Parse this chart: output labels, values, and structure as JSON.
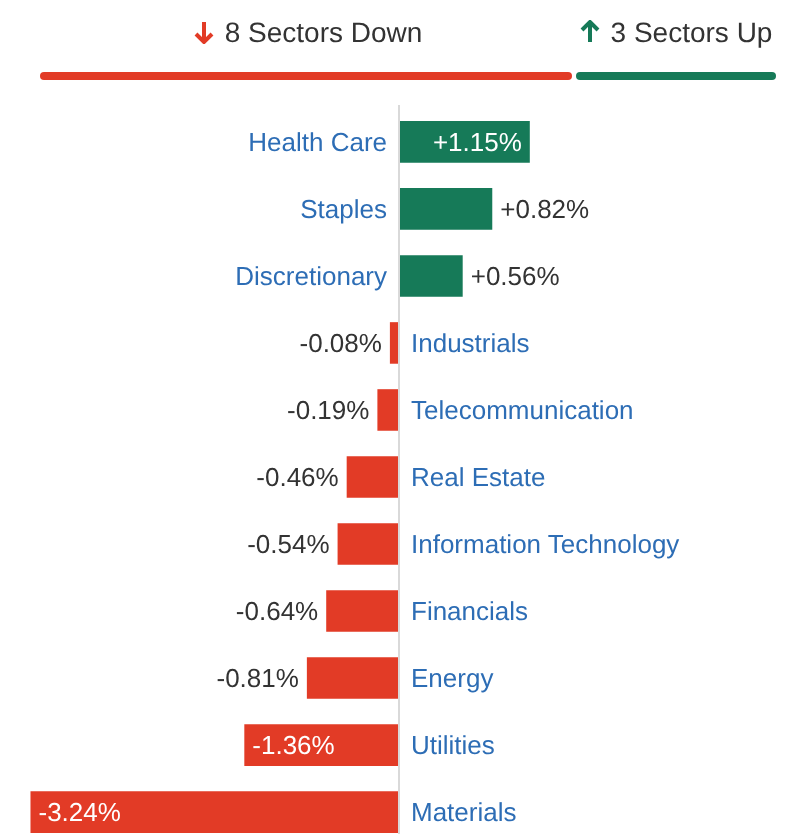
{
  "chart_data": {
    "type": "bar",
    "orientation": "horizontal",
    "annotations": [
      "8 Sectors Down",
      "3 Sectors Up"
    ],
    "categories": [
      "Health Care",
      "Staples",
      "Discretionary",
      "Industrials",
      "Telecommunication",
      "Real Estate",
      "Information Technology",
      "Financials",
      "Energy",
      "Utilities",
      "Materials"
    ],
    "values": [
      1.15,
      0.82,
      0.56,
      -0.08,
      -0.19,
      -0.46,
      -0.54,
      -0.64,
      -0.81,
      -1.36,
      -3.24
    ],
    "value_labels": [
      "+1.15%",
      "+0.82%",
      "+0.56%",
      "-0.08%",
      "-0.19%",
      "-0.46%",
      "-0.54%",
      "-0.64%",
      "-0.81%",
      "-1.36%",
      "-3.24%"
    ],
    "colors": [
      "#167a58",
      "#167a58",
      "#167a58",
      "#e23b26",
      "#e23b26",
      "#e23b26",
      "#e23b26",
      "#e23b26",
      "#e23b26",
      "#e23b26",
      "#e23b26"
    ],
    "grid": false
  }
}
